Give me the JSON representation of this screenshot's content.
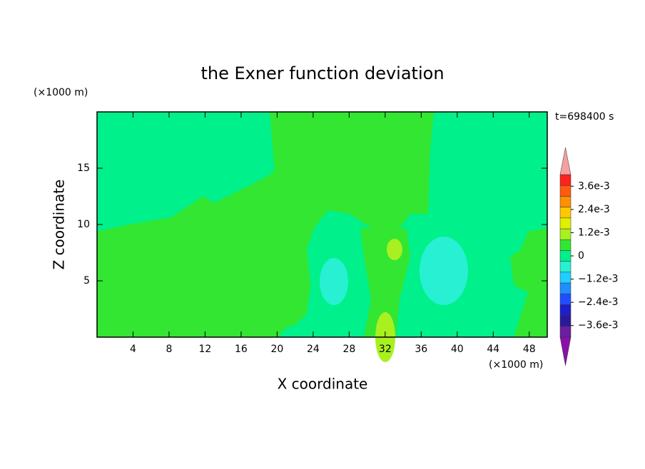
{
  "chart_data": {
    "type": "contour",
    "title": "the Exner function deviation",
    "x_label": "X coordinate",
    "y_label": "Z coordinate",
    "x_unit": "(×1000 m)",
    "y_unit": "(×1000 m)",
    "time_label": "t=698400 s",
    "xlim": [
      0,
      50
    ],
    "ylim": [
      0,
      20
    ],
    "xticks": [
      4,
      8,
      12,
      16,
      20,
      24,
      28,
      32,
      36,
      40,
      44,
      48
    ],
    "yticks": [
      5,
      10,
      15
    ],
    "colorbar_lim": [
      -0.0042,
      0.0042
    ],
    "colorbar_colors": [
      "#6a1fa0",
      "#2a1a9a",
      "#1e1ecf",
      "#1f4fff",
      "#1f8fff",
      "#1fcfff",
      "#28f0d2",
      "#00f08c",
      "#32e632",
      "#a8f020",
      "#e0f000",
      "#ffc800",
      "#ff9000",
      "#ff5a10",
      "#ff2020"
    ],
    "colorbar_over": "#f4a0a0",
    "colorbar_under": "#8a10a8",
    "colorbar_ticks": [
      {
        "value": 0.0036,
        "label": "3.6e-3"
      },
      {
        "value": 0.0024,
        "label": "2.4e-3"
      },
      {
        "value": 0.0012,
        "label": "1.2e-3"
      },
      0,
      {
        "value": -0.0012,
        "label": "−1.2e-3"
      },
      {
        "value": -0.0024,
        "label": "−2.4e-3"
      },
      {
        "value": -0.0036,
        "label": "−3.6e-3"
      }
    ]
  }
}
